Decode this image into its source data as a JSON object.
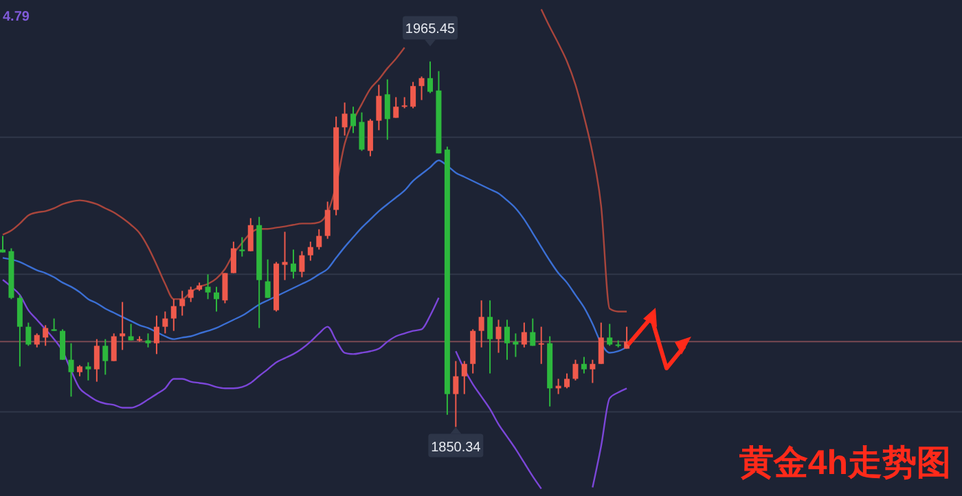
{
  "chart_data": {
    "type": "candlestick",
    "title": "黄金4h走势图",
    "categories": [
      null,
      null,
      null,
      null,
      null,
      null,
      null,
      null,
      null,
      null,
      null,
      null,
      null,
      null,
      null,
      null,
      null,
      null,
      null,
      null,
      null,
      null,
      null,
      null,
      null,
      null,
      null,
      null,
      null,
      null,
      null,
      null,
      null,
      null,
      null,
      null,
      null,
      null,
      null,
      null,
      null,
      null,
      null,
      null,
      null,
      null,
      null,
      null,
      null,
      null,
      null,
      null,
      null,
      null,
      null,
      null,
      null,
      null,
      null,
      null,
      null,
      null,
      null,
      null,
      null,
      null,
      null,
      null,
      null,
      null,
      null,
      null,
      null,
      null
    ],
    "ohlc": [
      [
        1906.2,
        1910.5,
        1905.3,
        1905.3
      ],
      [
        1905.7,
        1906.6,
        1890.6,
        1891.0
      ],
      [
        1891.0,
        1891.9,
        1869.4,
        1881.9
      ],
      [
        1881.9,
        1883.2,
        1875.9,
        1876.3
      ],
      [
        1876.3,
        1879.8,
        1875.4,
        1879.3
      ],
      [
        1878.5,
        1882.4,
        1875.9,
        1881.5
      ],
      [
        1881.1,
        1884.5,
        1880.6,
        1880.6
      ],
      [
        1880.6,
        1881.1,
        1871.5,
        1871.5
      ],
      [
        1871.5,
        1876.7,
        1859.9,
        1867.6
      ],
      [
        1867.6,
        1869.8,
        1866.3,
        1869.4
      ],
      [
        1869.4,
        1870.7,
        1865.0,
        1868.5
      ],
      [
        1868.5,
        1878.0,
        1864.6,
        1875.9
      ],
      [
        1875.9,
        1878.0,
        1866.8,
        1871.1
      ],
      [
        1871.1,
        1879.8,
        1871.1,
        1878.9
      ],
      [
        1878.9,
        1889.7,
        1874.6,
        1879.8
      ],
      [
        1878.9,
        1882.8,
        1877.6,
        1877.6
      ],
      [
        1877.6,
        1878.9,
        1877.2,
        1878.0
      ],
      [
        1877.6,
        1879.8,
        1875.4,
        1876.7
      ],
      [
        1876.7,
        1885.4,
        1873.3,
        1881.9
      ],
      [
        1881.9,
        1886.7,
        1879.8,
        1884.5
      ],
      [
        1884.5,
        1890.6,
        1880.6,
        1888.4
      ],
      [
        1888.4,
        1893.2,
        1885.4,
        1890.6
      ],
      [
        1891.0,
        1894.5,
        1889.7,
        1893.6
      ],
      [
        1893.6,
        1895.8,
        1893.2,
        1894.9
      ],
      [
        1894.5,
        1898.4,
        1890.6,
        1892.7
      ],
      [
        1892.7,
        1894.5,
        1886.7,
        1890.6
      ],
      [
        1890.2,
        1898.8,
        1889.3,
        1898.8
      ],
      [
        1898.8,
        1908.7,
        1898.8,
        1906.6
      ],
      [
        1906.2,
        1910.1,
        1904.0,
        1905.7
      ],
      [
        1905.7,
        1916.1,
        1905.7,
        1913.9
      ],
      [
        1913.9,
        1916.5,
        1881.5,
        1896.6
      ],
      [
        1896.2,
        1903.1,
        1891.0,
        1891.0
      ],
      [
        1887.1,
        1902.3,
        1886.7,
        1901.8
      ],
      [
        1901.4,
        1911.8,
        1896.6,
        1902.3
      ],
      [
        1901.8,
        1906.2,
        1897.1,
        1899.2
      ],
      [
        1899.2,
        1905.7,
        1897.5,
        1904.4
      ],
      [
        1904.4,
        1908.7,
        1902.7,
        1907.0
      ],
      [
        1907.0,
        1912.6,
        1906.2,
        1910.5
      ],
      [
        1910.5,
        1921.3,
        1909.6,
        1918.7
      ],
      [
        1918.7,
        1948.1,
        1917.0,
        1944.7
      ],
      [
        1944.7,
        1952.5,
        1942.1,
        1949.0
      ],
      [
        1949.0,
        1951.2,
        1942.9,
        1945.1
      ],
      [
        1946.4,
        1949.4,
        1937.3,
        1937.7
      ],
      [
        1937.3,
        1947.3,
        1935.6,
        1946.8
      ],
      [
        1946.8,
        1958.1,
        1943.8,
        1954.6
      ],
      [
        1955.1,
        1959.8,
        1940.8,
        1947.3
      ],
      [
        1947.7,
        1954.2,
        1947.7,
        1951.2
      ],
      [
        1951.2,
        1954.2,
        1950.7,
        1951.6
      ],
      [
        1951.2,
        1959.0,
        1950.7,
        1957.7
      ],
      [
        1957.7,
        1960.7,
        1953.3,
        1960.2
      ],
      [
        1960.2,
        1965.45,
        1955.5,
        1955.9
      ],
      [
        1956.3,
        1962.4,
        1936.5,
        1936.5
      ],
      [
        1937.7,
        1938.6,
        1854.2,
        1860.7
      ],
      [
        1860.7,
        1871.1,
        1850.34,
        1866.3
      ],
      [
        1866.3,
        1871.1,
        1860.7,
        1870.2
      ],
      [
        1870.2,
        1881.1,
        1867.2,
        1880.6
      ],
      [
        1880.6,
        1890.2,
        1875.4,
        1885.0
      ],
      [
        1885.0,
        1890.2,
        1867.2,
        1878.0
      ],
      [
        1878.0,
        1884.1,
        1873.7,
        1881.9
      ],
      [
        1881.9,
        1884.1,
        1871.5,
        1876.7
      ],
      [
        1877.2,
        1879.8,
        1872.4,
        1876.3
      ],
      [
        1876.3,
        1883.2,
        1875.4,
        1880.2
      ],
      [
        1880.2,
        1884.5,
        1875.9,
        1875.9
      ],
      [
        1876.3,
        1881.9,
        1870.2,
        1876.7
      ],
      [
        1876.7,
        1878.9,
        1856.8,
        1862.5
      ],
      [
        1862.5,
        1865.5,
        1860.7,
        1863.3
      ],
      [
        1862.9,
        1867.2,
        1862.5,
        1865.5
      ],
      [
        1865.5,
        1871.5,
        1865.0,
        1870.2
      ],
      [
        1870.2,
        1872.4,
        1867.2,
        1868.5
      ],
      [
        1868.5,
        1871.5,
        1864.2,
        1870.2
      ],
      [
        1870.2,
        1883.2,
        1870.2,
        1878.5
      ],
      [
        1878.5,
        1882.8,
        1875.9,
        1876.3
      ],
      [
        1876.3,
        1877.6,
        1875.4,
        1875.9
      ],
      [
        1875.0,
        1881.9,
        1875.0,
        1877.2
      ]
    ],
    "series": [
      {
        "type": "line",
        "color": "#a8453c",
        "values": [
          1910.9,
          1912.2,
          1914.4,
          1917.0,
          1917.9,
          1918.3,
          1919.2,
          1920.5,
          1921.3,
          1921.7,
          1921.3,
          1920.5,
          1919.2,
          1917.9,
          1916.1,
          1914.0,
          1911.4,
          1907.0,
          1901.4,
          1895.4,
          1890.6,
          1890.6,
          1892.8,
          1894.5,
          1895.4,
          1897.1,
          1900.1,
          1904.9,
          1908.3,
          1911.4,
          1912.7,
          1912.7,
          1913.1,
          1913.5,
          1914.0,
          1914.4,
          1914.4,
          1914.8,
          1917.9,
          1926.5,
          1939.5,
          1946.8,
          1952.0,
          1956.8,
          1959.8,
          1963.3,
          1966.3,
          1969.8,
          null,
          null,
          null,
          null,
          null,
          null,
          null,
          null,
          null,
          null,
          null,
          null,
          null,
          null,
          null,
          1981.9,
          1976.3,
          1971.1,
          1965.5,
          1958.1,
          1948.1,
          1936.5,
          1920.0,
          1887.6,
          1886.7,
          1886.7
        ]
      },
      {
        "type": "line",
        "color": "#3b6fd4",
        "values": [
          1903.6,
          1903.1,
          1902.3,
          1901.0,
          1899.7,
          1898.8,
          1897.5,
          1895.8,
          1894.5,
          1892.8,
          1890.6,
          1889.3,
          1887.6,
          1886.3,
          1885.0,
          1883.7,
          1882.4,
          1881.5,
          1880.2,
          1878.9,
          1878.0,
          1878.5,
          1878.9,
          1879.8,
          1880.6,
          1881.5,
          1882.8,
          1884.1,
          1885.4,
          1887.1,
          1888.9,
          1890.2,
          1891.5,
          1892.8,
          1894.1,
          1895.4,
          1896.7,
          1898.4,
          1900.1,
          1903.6,
          1907.0,
          1910.1,
          1913.1,
          1915.7,
          1918.3,
          1920.5,
          1922.6,
          1924.8,
          1927.8,
          1930.0,
          1932.1,
          1934.3,
          1932.6,
          1930.4,
          1929.1,
          1927.8,
          1926.5,
          1925.2,
          1923.9,
          1921.7,
          1919.2,
          1915.7,
          1911.4,
          1907.0,
          1902.7,
          1898.8,
          1895.8,
          1891.9,
          1888.0,
          1882.8,
          1876.7,
          1873.7,
          1874.2,
          1875.5
        ]
      },
      {
        "type": "line",
        "color": "#7b46d8",
        "values": [
          1896.7,
          1894.5,
          1891.9,
          1887.1,
          1884.1,
          1881.1,
          1878.0,
          1874.2,
          1868.1,
          1862.5,
          1860.3,
          1858.6,
          1857.7,
          1857.3,
          1856.4,
          1856.4,
          1857.3,
          1859.0,
          1860.7,
          1862.5,
          1865.5,
          1865.5,
          1864.6,
          1864.2,
          1863.8,
          1862.9,
          1862.5,
          1862.5,
          1862.9,
          1864.2,
          1866.4,
          1868.5,
          1870.7,
          1872.0,
          1873.3,
          1875.0,
          1877.2,
          1879.8,
          1881.9,
          1877.6,
          1873.7,
          1873.3,
          1873.7,
          1874.2,
          1875.0,
          1877.2,
          1878.9,
          1879.8,
          1880.6,
          1881.1,
          1885.4,
          1891.0,
          null,
          1874.2,
          1868.5,
          1863.8,
          1859.9,
          1856.0,
          1851.2,
          1847.3,
          1843.4,
          1839.1,
          1834.8,
          1830.9,
          null,
          null,
          null,
          null,
          null,
          1831.3,
          1844.3,
          1859.4,
          1861.2,
          1862.5
        ]
      }
    ],
    "ylim": [
      1828.6,
      1984.8
    ],
    "yticks": [
      {
        "value": 1941.6,
        "label": null
      },
      {
        "value": 1898.4,
        "label": null
      },
      {
        "value": 1855.1,
        "label": null
      }
    ],
    "grid": "y",
    "ref_lines": [
      {
        "axis": "y",
        "value": 1877.2,
        "color": "#7a4a52"
      }
    ],
    "annotations": [
      "4.79",
      {
        "text": "1965.45",
        "y": 1965.45
      },
      {
        "text": "1850.34",
        "y": 1850.34
      }
    ]
  }
}
